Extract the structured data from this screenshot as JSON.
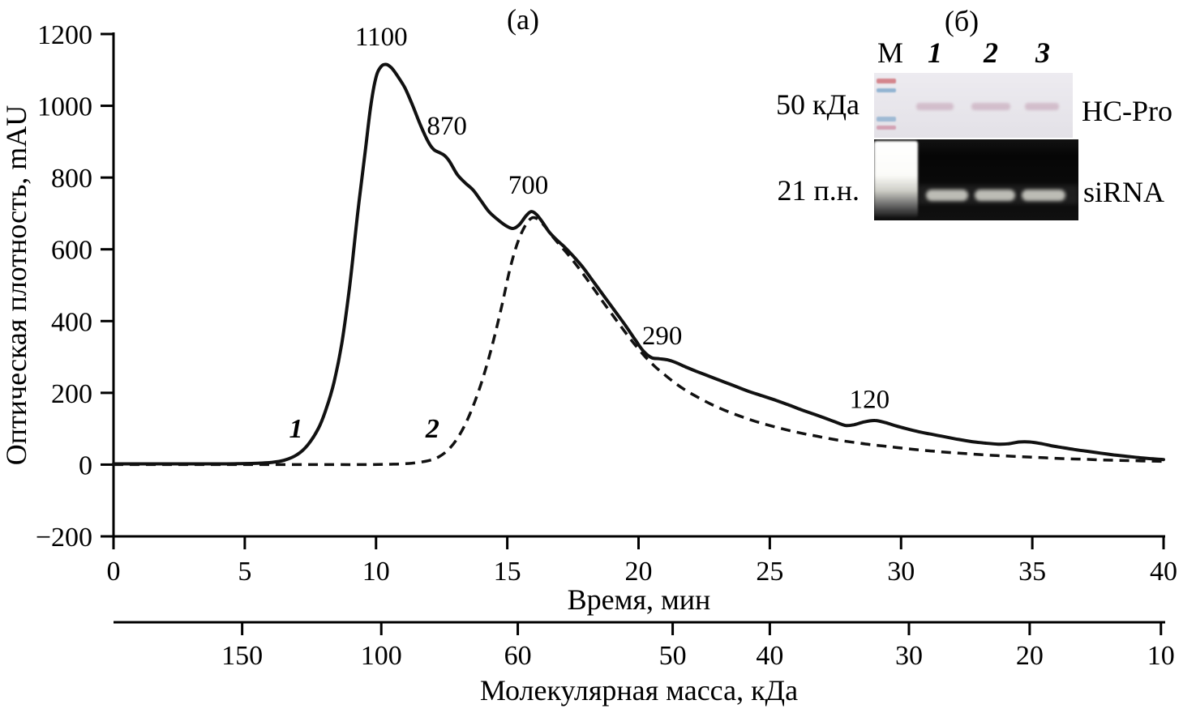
{
  "figure": {
    "panel_a": "(а)",
    "panel_b": "(б)"
  },
  "chart_data": {
    "type": "line",
    "title": "",
    "xlabel": "Время, мин",
    "ylabel": "Оптическая плотность, mAU",
    "x2label": "Молекулярная масса, кДа",
    "xlim": [
      0,
      40
    ],
    "ylim": [
      -200,
      1200
    ],
    "grid": false,
    "x_ticks": [
      {
        "label": "0",
        "v": 0
      },
      {
        "label": "5",
        "v": 5
      },
      {
        "label": "10",
        "v": 10
      },
      {
        "label": "15",
        "v": 15
      },
      {
        "label": "20",
        "v": 20
      },
      {
        "label": "25",
        "v": 25
      },
      {
        "label": "30",
        "v": 30
      },
      {
        "label": "35",
        "v": 35
      },
      {
        "label": "40",
        "v": 40
      }
    ],
    "y_ticks": [
      {
        "label": "−200",
        "v": -200
      },
      {
        "label": "0",
        "v": 0
      },
      {
        "label": "200",
        "v": 200
      },
      {
        "label": "400",
        "v": 400
      },
      {
        "label": "600",
        "v": 600
      },
      {
        "label": "800",
        "v": 800
      },
      {
        "label": "1000",
        "v": 1000
      },
      {
        "label": "1200",
        "v": 1200
      }
    ],
    "x2_ticks": [
      {
        "label": "150",
        "t": 4.9
      },
      {
        "label": "100",
        "t": 10.2
      },
      {
        "label": "60",
        "t": 15.4
      },
      {
        "label": "50",
        "t": 21.3
      },
      {
        "label": "40",
        "t": 25.0
      },
      {
        "label": "30",
        "t": 30.3
      },
      {
        "label": "20",
        "t": 34.9
      },
      {
        "label": "10",
        "t": 39.9
      }
    ],
    "series": [
      {
        "name": "1",
        "line_style": "solid",
        "points": [
          [
            0,
            2
          ],
          [
            1,
            2
          ],
          [
            2,
            2
          ],
          [
            3,
            2
          ],
          [
            4,
            2
          ],
          [
            5,
            3
          ],
          [
            5.5,
            4
          ],
          [
            6,
            6
          ],
          [
            6.5,
            12
          ],
          [
            7,
            28
          ],
          [
            7.4,
            55
          ],
          [
            7.8,
            100
          ],
          [
            8.1,
            155
          ],
          [
            8.4,
            230
          ],
          [
            8.7,
            340
          ],
          [
            9.0,
            500
          ],
          [
            9.3,
            700
          ],
          [
            9.6,
            880
          ],
          [
            9.8,
            1000
          ],
          [
            10.0,
            1080
          ],
          [
            10.2,
            1110
          ],
          [
            10.4,
            1115
          ],
          [
            10.6,
            1105
          ],
          [
            10.8,
            1085
          ],
          [
            11.1,
            1050
          ],
          [
            11.4,
            1000
          ],
          [
            11.7,
            945
          ],
          [
            12.0,
            898
          ],
          [
            12.2,
            878
          ],
          [
            12.4,
            870
          ],
          [
            12.6,
            862
          ],
          [
            12.8,
            845
          ],
          [
            13.1,
            808
          ],
          [
            13.4,
            785
          ],
          [
            13.7,
            765
          ],
          [
            14.0,
            735
          ],
          [
            14.3,
            705
          ],
          [
            14.6,
            685
          ],
          [
            14.9,
            668
          ],
          [
            15.2,
            658
          ],
          [
            15.45,
            668
          ],
          [
            15.7,
            692
          ],
          [
            15.9,
            705
          ],
          [
            16.1,
            698
          ],
          [
            16.35,
            675
          ],
          [
            16.6,
            648
          ],
          [
            16.9,
            625
          ],
          [
            17.2,
            605
          ],
          [
            17.5,
            582
          ],
          [
            17.9,
            548
          ],
          [
            18.3,
            508
          ],
          [
            18.7,
            468
          ],
          [
            19.1,
            428
          ],
          [
            19.5,
            388
          ],
          [
            19.9,
            345
          ],
          [
            20.2,
            315
          ],
          [
            20.5,
            298
          ],
          [
            20.8,
            295
          ],
          [
            21.1,
            292
          ],
          [
            21.4,
            285
          ],
          [
            21.8,
            272
          ],
          [
            22.2,
            260
          ],
          [
            22.7,
            246
          ],
          [
            23.2,
            232
          ],
          [
            23.7,
            218
          ],
          [
            24.2,
            204
          ],
          [
            24.7,
            192
          ],
          [
            25.2,
            180
          ],
          [
            25.7,
            167
          ],
          [
            26.2,
            153
          ],
          [
            26.7,
            140
          ],
          [
            27.2,
            127
          ],
          [
            27.6,
            116
          ],
          [
            27.9,
            109
          ],
          [
            28.2,
            111
          ],
          [
            28.6,
            119
          ],
          [
            29.0,
            123
          ],
          [
            29.4,
            117
          ],
          [
            29.8,
            108
          ],
          [
            30.2,
            100
          ],
          [
            30.7,
            91
          ],
          [
            31.2,
            84
          ],
          [
            31.7,
            77
          ],
          [
            32.2,
            70
          ],
          [
            32.7,
            64
          ],
          [
            33.2,
            60
          ],
          [
            33.7,
            57
          ],
          [
            34.1,
            58
          ],
          [
            34.5,
            63
          ],
          [
            34.9,
            63
          ],
          [
            35.3,
            59
          ],
          [
            35.7,
            53
          ],
          [
            36.1,
            48
          ],
          [
            36.6,
            42
          ],
          [
            37.1,
            37
          ],
          [
            37.6,
            32
          ],
          [
            38.1,
            27
          ],
          [
            38.6,
            23
          ],
          [
            39.1,
            19
          ],
          [
            39.6,
            16
          ],
          [
            40,
            14
          ]
        ]
      },
      {
        "name": "2",
        "line_style": "dashed",
        "points": [
          [
            0,
            0
          ],
          [
            2,
            0
          ],
          [
            4,
            0
          ],
          [
            6,
            0
          ],
          [
            8,
            0
          ],
          [
            9.5,
            0
          ],
          [
            10.5,
            1
          ],
          [
            11,
            2
          ],
          [
            11.5,
            5
          ],
          [
            12,
            11
          ],
          [
            12.4,
            22
          ],
          [
            12.8,
            45
          ],
          [
            13.2,
            85
          ],
          [
            13.6,
            145
          ],
          [
            14.0,
            225
          ],
          [
            14.4,
            325
          ],
          [
            14.8,
            445
          ],
          [
            15.1,
            545
          ],
          [
            15.4,
            620
          ],
          [
            15.7,
            668
          ],
          [
            15.95,
            688
          ],
          [
            16.2,
            682
          ],
          [
            16.45,
            662
          ],
          [
            16.7,
            638
          ],
          [
            17.0,
            612
          ],
          [
            17.4,
            578
          ],
          [
            17.8,
            540
          ],
          [
            18.2,
            500
          ],
          [
            18.6,
            458
          ],
          [
            19.0,
            418
          ],
          [
            19.4,
            378
          ],
          [
            19.8,
            340
          ],
          [
            20.2,
            305
          ],
          [
            20.6,
            275
          ],
          [
            21.0,
            250
          ],
          [
            21.4,
            227
          ],
          [
            21.8,
            207
          ],
          [
            22.3,
            186
          ],
          [
            22.8,
            167
          ],
          [
            23.3,
            151
          ],
          [
            23.8,
            137
          ],
          [
            24.3,
            124
          ],
          [
            24.8,
            113
          ],
          [
            25.3,
            103
          ],
          [
            25.8,
            94
          ],
          [
            26.3,
            86
          ],
          [
            26.8,
            79
          ],
          [
            27.3,
            72
          ],
          [
            27.8,
            66
          ],
          [
            28.3,
            61
          ],
          [
            28.8,
            56
          ],
          [
            29.3,
            52
          ],
          [
            29.8,
            48
          ],
          [
            30.4,
            43
          ],
          [
            31.0,
            39
          ],
          [
            31.6,
            35
          ],
          [
            32.2,
            32
          ],
          [
            32.8,
            29
          ],
          [
            33.4,
            26
          ],
          [
            34.0,
            24
          ],
          [
            34.6,
            22
          ],
          [
            35.2,
            20
          ],
          [
            35.8,
            18
          ],
          [
            36.4,
            16
          ],
          [
            37.0,
            15
          ],
          [
            37.6,
            13
          ],
          [
            38.2,
            12
          ],
          [
            38.8,
            11
          ],
          [
            39.4,
            10
          ],
          [
            40,
            9
          ]
        ]
      }
    ],
    "peak_annotations": [
      {
        "text": "1100",
        "x": 10.2,
        "y": 1168
      },
      {
        "text": "870",
        "x": 12.7,
        "y": 920
      },
      {
        "text": "700",
        "x": 15.8,
        "y": 755
      },
      {
        "text": "290",
        "x": 20.9,
        "y": 335
      },
      {
        "text": "120",
        "x": 28.8,
        "y": 158
      }
    ],
    "curve_labels": [
      {
        "text": "1",
        "x": 6.95,
        "y": 76
      },
      {
        "text": "2",
        "x": 12.15,
        "y": 76
      }
    ],
    "line_color": "#111111"
  },
  "gel": {
    "lanes": [
      "M",
      "1",
      "2",
      "3"
    ],
    "blot": {
      "left_label": "50 кДа",
      "right_label": "HC-Pro"
    },
    "sirna": {
      "left_label": "21 п.н.",
      "right_label": "siRNA"
    }
  }
}
